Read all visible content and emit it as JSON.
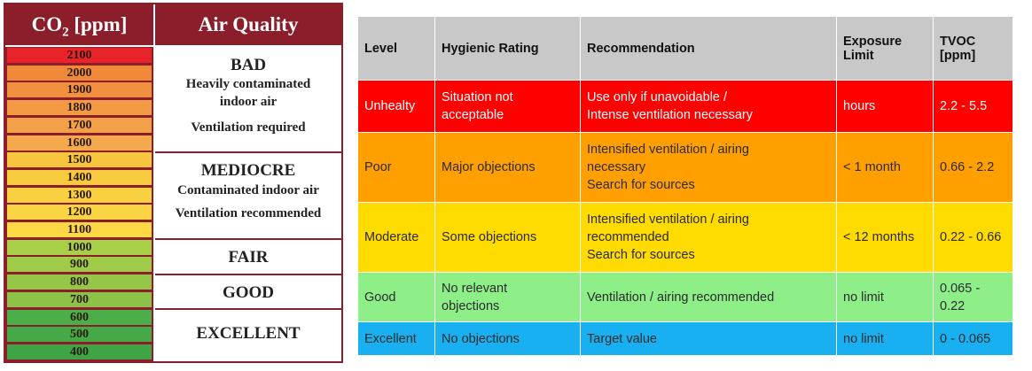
{
  "co2_scale": {
    "header_co2_main": "CO",
    "header_co2_sub": "2",
    "header_co2_unit": " [ppm]",
    "header_quality": "Air Quality",
    "ppm_levels": [
      {
        "value": "2100",
        "color": "#e8232a"
      },
      {
        "value": "2000",
        "color": "#f08a3a"
      },
      {
        "value": "1900",
        "color": "#f19140"
      },
      {
        "value": "1800",
        "color": "#f29a44"
      },
      {
        "value": "1700",
        "color": "#f3a149"
      },
      {
        "value": "1600",
        "color": "#f4a94c"
      },
      {
        "value": "1500",
        "color": "#f7c53e"
      },
      {
        "value": "1400",
        "color": "#f8cb3e"
      },
      {
        "value": "1300",
        "color": "#f9d040"
      },
      {
        "value": "1200",
        "color": "#fad442"
      },
      {
        "value": "1100",
        "color": "#fbd844"
      },
      {
        "value": "1000",
        "color": "#a8cf48"
      },
      {
        "value": "900",
        "color": "#9fcb48"
      },
      {
        "value": "800",
        "color": "#96c648"
      },
      {
        "value": "700",
        "color": "#8dc248"
      },
      {
        "value": "600",
        "color": "#4cae48"
      },
      {
        "value": "500",
        "color": "#45a948"
      },
      {
        "value": "400",
        "color": "#3ea446"
      }
    ],
    "quality_bands": [
      {
        "title": "BAD",
        "lines": [
          "Heavily contaminated",
          "indoor air",
          "Ventilation required"
        ]
      },
      {
        "title": "MEDIOCRE",
        "lines": [
          "Contaminated indoor air",
          "Ventilation recommended"
        ]
      },
      {
        "title": "FAIR",
        "lines": []
      },
      {
        "title": "GOOD",
        "lines": []
      },
      {
        "title": "EXCELLENT",
        "lines": []
      }
    ]
  },
  "table": {
    "headers": {
      "level": "Level",
      "rating": "Hygienic Rating",
      "recommendation": "Recommendation",
      "exposure_line1": "Exposure",
      "exposure_line2": "Limit",
      "tvoc_line1": "TVOC",
      "tvoc_line2": "[ppm]"
    },
    "rows": [
      {
        "level": "Unhealty",
        "rating": [
          "Situation not",
          "acceptable"
        ],
        "recommendation": [
          "Use only if unavoidable /",
          "Intense ventilation necessary"
        ],
        "exposure": "hours",
        "tvoc": [
          "2.2 - 5.5"
        ],
        "color": "#fe0000"
      },
      {
        "level": "Poor",
        "rating": [
          "Major objections"
        ],
        "recommendation": [
          "Intensified ventilation / airing",
          "necessary",
          "Search for sources"
        ],
        "exposure": "< 1 month",
        "tvoc": [
          "0.66 - 2.2"
        ],
        "color": "#ff9f00"
      },
      {
        "level": "Moderate",
        "rating": [
          "Some objections"
        ],
        "recommendation": [
          "Intensified ventilation / airing",
          "recommended",
          "Search for sources"
        ],
        "exposure": "< 12 months",
        "tvoc": [
          "0.22 - 0.66"
        ],
        "color": "#ffdb00"
      },
      {
        "level": "Good",
        "rating": [
          "No relevant",
          "objections"
        ],
        "recommendation": [
          "Ventilation / airing recommended"
        ],
        "exposure": "no limit",
        "tvoc": [
          "0.065 -",
          "0.22"
        ],
        "color": "#8eef88"
      },
      {
        "level": "Excellent",
        "rating": [
          "No objections"
        ],
        "recommendation": [
          "Target value"
        ],
        "exposure": "no limit",
        "tvoc": [
          "0 - 0.065"
        ],
        "color": "#18b0f0"
      }
    ]
  }
}
